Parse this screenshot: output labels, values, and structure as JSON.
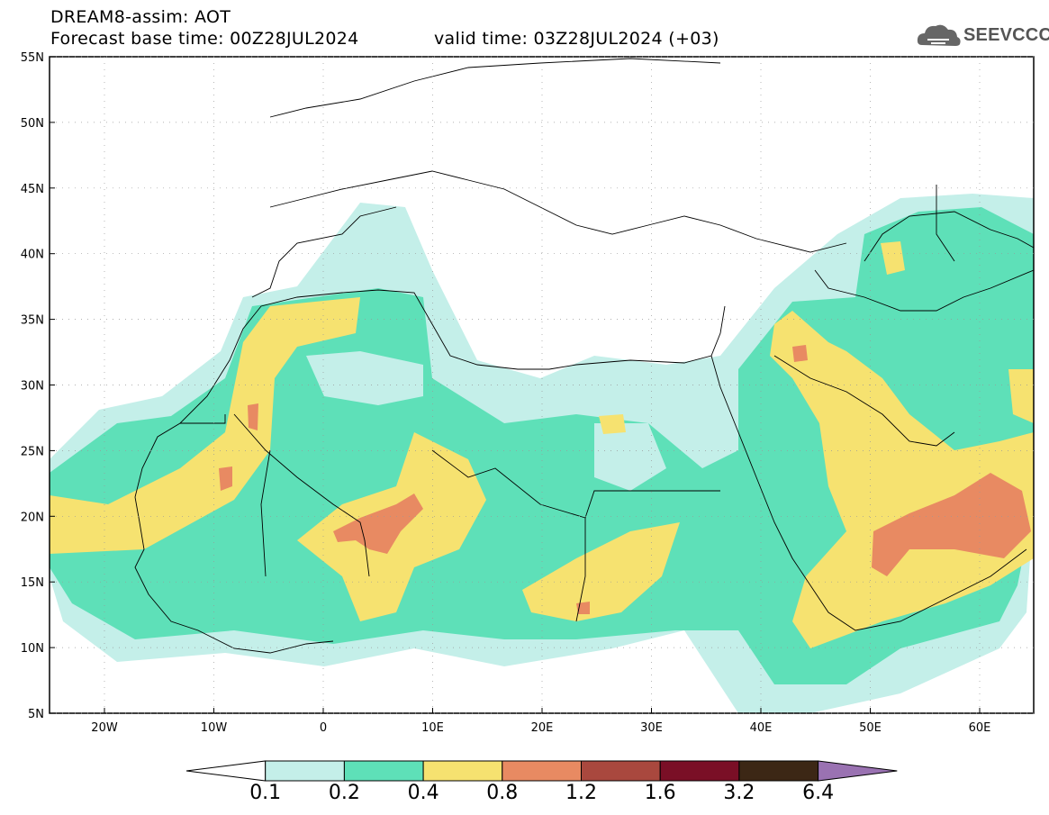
{
  "header": {
    "title": "DREAM8-assim: AOT",
    "forecast_base": "Forecast base time: 00Z28JUL2024",
    "valid_time": "valid time: 03Z28JUL2024 (+03)"
  },
  "logo": {
    "text": "SEEVCCC",
    "icon": "cloud-icon"
  },
  "axes": {
    "lat_labels": [
      "55N",
      "50N",
      "45N",
      "40N",
      "35N",
      "30N",
      "25N",
      "20N",
      "15N",
      "10N",
      "5N"
    ],
    "lon_labels": [
      "20W",
      "10W",
      "0",
      "10E",
      "20E",
      "30E",
      "40E",
      "50E",
      "60E"
    ]
  },
  "colorbar": {
    "levels": [
      "0.1",
      "0.2",
      "0.4",
      "0.8",
      "1.2",
      "1.6",
      "3.2",
      "6.4"
    ],
    "colors": [
      "#ffffff",
      "#c4efe9",
      "#5ee0b8",
      "#f6e270",
      "#e88a62",
      "#a9483e",
      "#7a0f26",
      "#3c2715",
      "#9a72b2"
    ]
  }
}
